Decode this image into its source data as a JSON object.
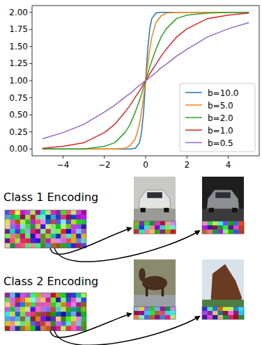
{
  "chart_data": {
    "type": "line",
    "x": [
      -5,
      -4,
      -3,
      -2,
      -1.5,
      -1,
      -0.75,
      -0.5,
      -0.3,
      -0.2,
      -0.1,
      0,
      0.1,
      0.2,
      0.3,
      0.5,
      0.75,
      1,
      1.5,
      2,
      3,
      4,
      5
    ],
    "series": [
      {
        "name": "b=10.0",
        "color": "#1f77b4",
        "values": [
          0.0,
          0.0,
          0.0,
          0.0,
          0.0,
          0.0,
          0.0,
          0.01,
          0.09,
          0.24,
          0.54,
          1.0,
          1.46,
          1.76,
          1.91,
          1.99,
          2.0,
          2.0,
          2.0,
          2.0,
          2.0,
          2.0,
          2.0
        ]
      },
      {
        "name": "b=5.0",
        "color": "#ff7f0e",
        "values": [
          0.0,
          0.0,
          0.0,
          0.0,
          0.0,
          0.01,
          0.05,
          0.15,
          0.36,
          0.54,
          0.76,
          1.0,
          1.24,
          1.46,
          1.64,
          1.85,
          1.95,
          1.99,
          2.0,
          2.0,
          2.0,
          2.0,
          2.0
        ]
      },
      {
        "name": "b=2.0",
        "color": "#2ca02c",
        "values": [
          0.0,
          0.0,
          0.0,
          0.04,
          0.09,
          0.24,
          0.36,
          0.54,
          0.71,
          0.8,
          0.9,
          1.0,
          1.1,
          1.2,
          1.29,
          1.46,
          1.64,
          1.76,
          1.91,
          1.96,
          1.99,
          2.0,
          2.0
        ]
      },
      {
        "name": "b=1.0",
        "color": "#d62728",
        "values": [
          0.01,
          0.04,
          0.09,
          0.24,
          0.36,
          0.54,
          0.64,
          0.76,
          0.85,
          0.9,
          0.95,
          1.0,
          1.05,
          1.1,
          1.15,
          1.24,
          1.36,
          1.46,
          1.64,
          1.76,
          1.91,
          1.96,
          1.99
        ]
      },
      {
        "name": "b=0.5",
        "color": "#9467bd",
        "values": [
          0.15,
          0.24,
          0.36,
          0.54,
          0.64,
          0.76,
          0.81,
          0.88,
          0.93,
          0.95,
          0.98,
          1.0,
          1.02,
          1.05,
          1.07,
          1.12,
          1.19,
          1.24,
          1.36,
          1.46,
          1.64,
          1.76,
          1.85
        ]
      }
    ],
    "xlim": [
      -5.5,
      5.5
    ],
    "ylim": [
      -0.1,
      2.1
    ],
    "xticks": [
      {
        "value": -4,
        "label": "−4"
      },
      {
        "value": -2,
        "label": "−2"
      },
      0,
      2,
      4
    ],
    "yticks": [
      {
        "value": 0,
        "label": "0.00"
      },
      {
        "value": 0.25,
        "label": "0.25"
      },
      {
        "value": 0.5,
        "label": "0.50"
      },
      {
        "value": 0.75,
        "label": "0.75"
      },
      {
        "value": 1,
        "label": "1.00"
      },
      {
        "value": 1.25,
        "label": "1.25"
      },
      {
        "value": 1.5,
        "label": "1.50"
      },
      {
        "value": 1.75,
        "label": "1.75"
      },
      {
        "value": 2,
        "label": "2.00"
      }
    ],
    "grid": false,
    "legend": "lower right"
  },
  "diagram": {
    "panels": [
      {
        "label": "Class 1 Encoding"
      },
      {
        "label": "Class 2 Encoding"
      }
    ]
  }
}
